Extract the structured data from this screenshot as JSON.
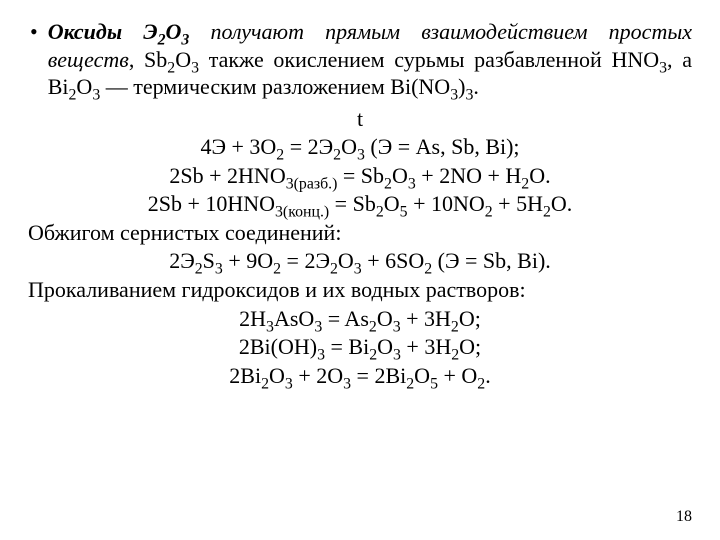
{
  "bullet": "•",
  "intro": {
    "strong_lead": "Оксиды  Э",
    "strong_tail": "O",
    "italic_tail": "  получают  прямым  взаимодействием простых  веществ",
    "rest_a": ",  Sb",
    "rest_b": "O",
    "rest_c": "  также  окислением  сурьмы разбавленной  HNO",
    "rest_d": ",  а  Bi",
    "rest_e": "O",
    "rest_f": "  —  термическим разложением Bi(NO",
    "rest_g": ")",
    "rest_h": "."
  },
  "t_line": "t",
  "eq1": {
    "a": "4Э  +  3O",
    "b": "  =  2Э",
    "c": "O",
    "d": "       (Э = As, Sb, Bi);"
  },
  "eq2": {
    "a": "2Sb  +  2HNO",
    "sub1": "3(разб.)",
    "b": "  =  Sb",
    "c": "O",
    "d": "  +  2NO  +  H",
    "e": "O."
  },
  "eq3": {
    "a": "2Sb  +  10HNO",
    "sub1": "3(конц.)",
    "b": "  =  Sb",
    "c": "O",
    "d": "  +  10NO",
    "e": "  +  5H",
    "f": "O."
  },
  "line_roast": "Обжигом сернистых соединений:",
  "eq4": {
    "a": "2Э",
    "b": "S",
    "c": "  +  9O",
    "d": "  =  2Э",
    "e": "O",
    "f": "  +  6SO",
    "g": "  (Э = Sb, Bi)."
  },
  "line_calc": "Прокаливанием гидроксидов и их водных растворов:",
  "eq5": {
    "a": "2H",
    "b": "AsO",
    "c": "  =  As",
    "d": "O",
    "e": "  +  3H",
    "f": "O;"
  },
  "eq6": {
    "a": "2Bi(OH)",
    "b": "  =  Bi",
    "c": "O",
    "d": "  +  3H",
    "e": "O;"
  },
  "eq7": {
    "a": "2Bi",
    "b": "O",
    "c": " + 2O",
    "d": " = 2Bi",
    "e": "O",
    "f": " + O",
    "g": "."
  },
  "page_number": "18"
}
